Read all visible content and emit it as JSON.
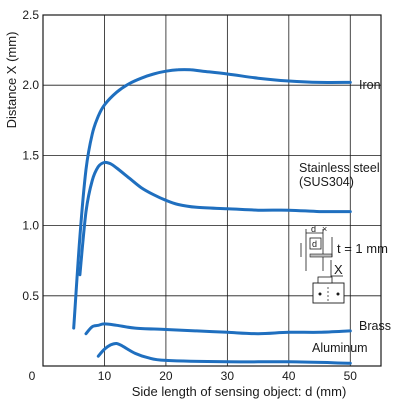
{
  "chart_data": {
    "type": "line",
    "title": "",
    "xlabel": "Side length of sensing object: d (mm)",
    "ylabel": "Distance X (mm)",
    "xlim": [
      0,
      55
    ],
    "ylim": [
      0,
      2.5
    ],
    "x_ticks": [
      "0",
      "10",
      "20",
      "30",
      "40",
      "50"
    ],
    "y_ticks": [
      "0.5",
      "1.0",
      "1.5",
      "2.0",
      "2.5"
    ],
    "grid": true,
    "line_color": "#1f6fbf",
    "series": [
      {
        "name": "Iron",
        "x": [
          5,
          6,
          7,
          8,
          9,
          10,
          12,
          14,
          16,
          18,
          20,
          22,
          24,
          26,
          30,
          35,
          40,
          45,
          50
        ],
        "y": [
          0.27,
          0.92,
          1.4,
          1.65,
          1.78,
          1.86,
          1.95,
          2.01,
          2.05,
          2.08,
          2.1,
          2.11,
          2.11,
          2.1,
          2.08,
          2.05,
          2.03,
          2.02,
          2.02
        ]
      },
      {
        "name": "Stainless steel\n(SUS304)",
        "x": [
          6,
          7,
          8,
          9,
          10,
          11,
          12,
          14,
          16,
          18,
          20,
          22,
          25,
          30,
          35,
          40,
          45,
          50
        ],
        "y": [
          0.65,
          1.1,
          1.32,
          1.42,
          1.45,
          1.44,
          1.41,
          1.34,
          1.27,
          1.22,
          1.18,
          1.15,
          1.13,
          1.12,
          1.11,
          1.11,
          1.1,
          1.1
        ]
      },
      {
        "name": "Brass",
        "x": [
          7,
          8,
          9,
          10,
          12,
          15,
          20,
          25,
          30,
          35,
          40,
          45,
          50
        ],
        "y": [
          0.23,
          0.28,
          0.29,
          0.3,
          0.29,
          0.27,
          0.26,
          0.25,
          0.24,
          0.23,
          0.24,
          0.24,
          0.25
        ]
      },
      {
        "name": "Aluminum",
        "x": [
          9,
          10,
          11,
          12,
          13,
          15,
          17,
          20,
          30,
          40,
          50
        ],
        "y": [
          0.07,
          0.12,
          0.15,
          0.16,
          0.14,
          0.09,
          0.06,
          0.04,
          0.03,
          0.03,
          0.02
        ]
      }
    ],
    "annotations": {
      "inset_d": "d",
      "inset_equation": "t = 1 mm",
      "inset_x": "X"
    }
  }
}
